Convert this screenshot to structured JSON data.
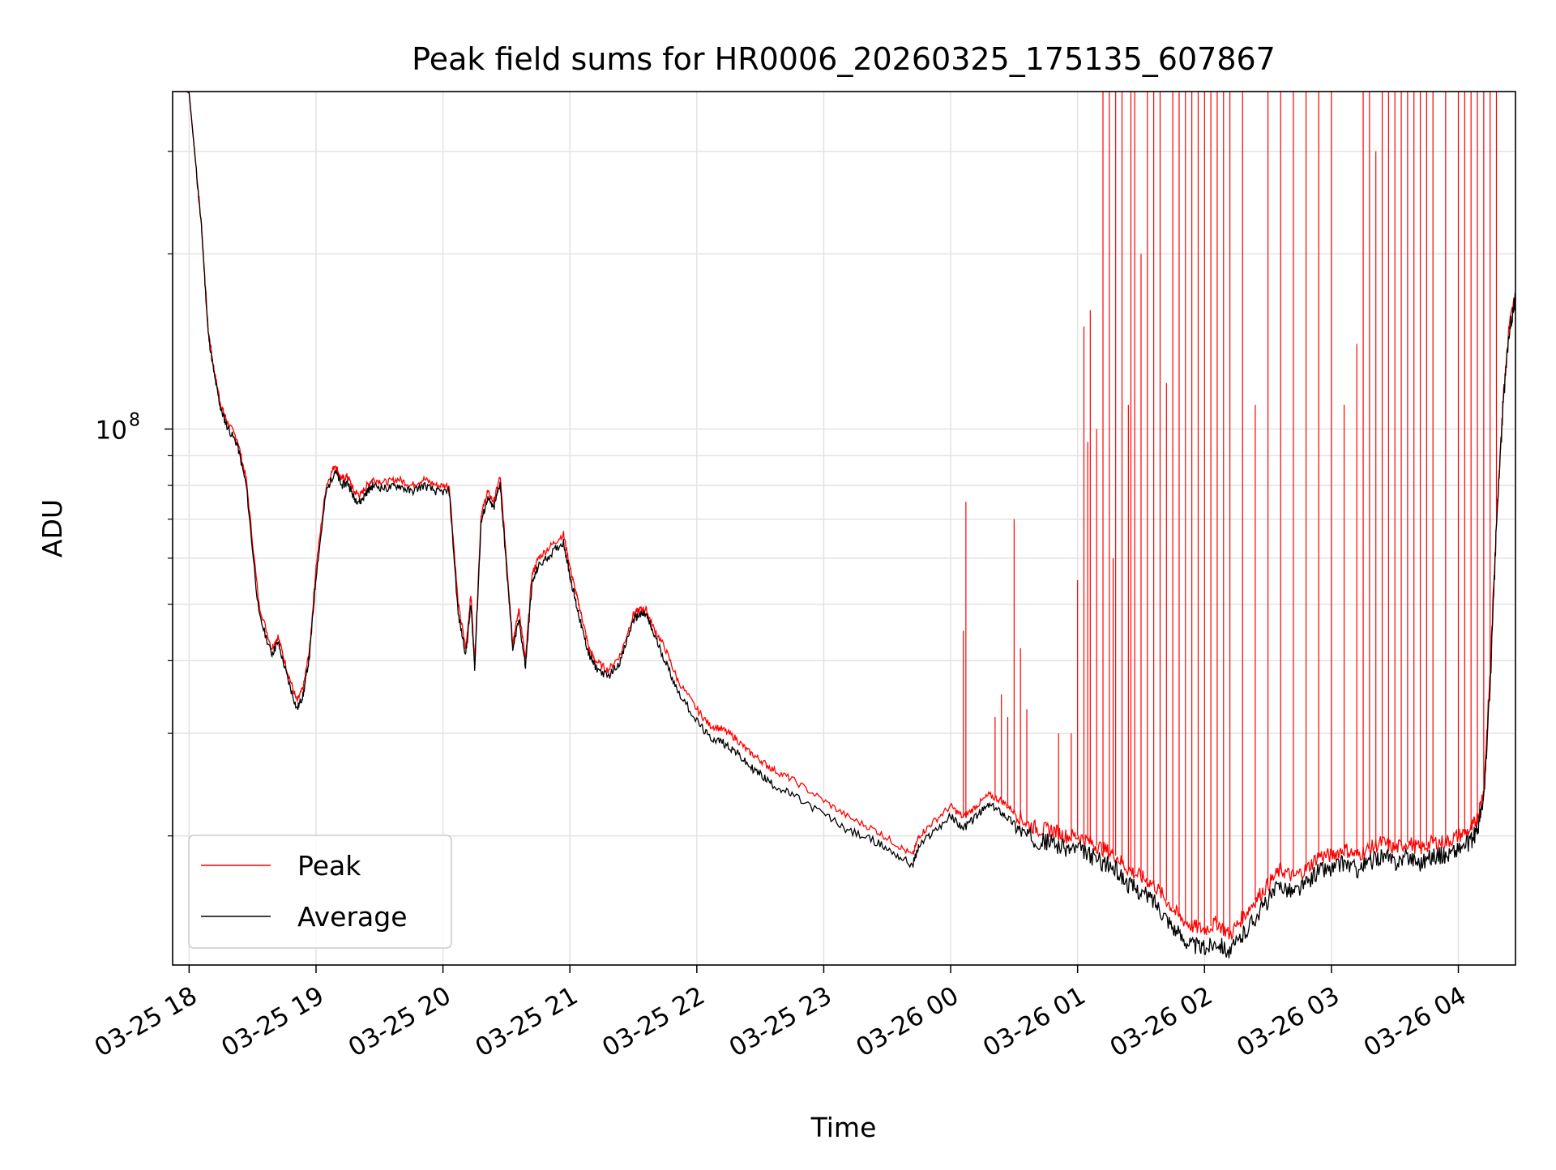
{
  "chart_data": {
    "type": "line",
    "title": "Peak field sums for HR0006_20260325_175135_607867",
    "xlabel": "Time",
    "ylabel": "ADU",
    "y_scale": "log",
    "x_unit": "hours since 03-25 00:00",
    "xlim": [
      17.87,
      28.45
    ],
    "ylim": [
      12000000,
      380000000
    ],
    "x_ticks": [
      {
        "value": 18,
        "label": "03-25 18"
      },
      {
        "value": 19,
        "label": "03-25 19"
      },
      {
        "value": 20,
        "label": "03-25 20"
      },
      {
        "value": 21,
        "label": "03-25 21"
      },
      {
        "value": 22,
        "label": "03-25 22"
      },
      {
        "value": 23,
        "label": "03-25 23"
      },
      {
        "value": 24,
        "label": "03-26 00"
      },
      {
        "value": 25,
        "label": "03-26 01"
      },
      {
        "value": 26,
        "label": "03-26 02"
      },
      {
        "value": 27,
        "label": "03-26 03"
      },
      {
        "value": 28,
        "label": "03-26 04"
      }
    ],
    "y_major_ticks": [
      {
        "value": 100000000,
        "base": "10",
        "exponent": "8"
      }
    ],
    "y_minor_ticks": [
      20000000,
      30000000,
      40000000,
      50000000,
      60000000,
      70000000,
      80000000,
      90000000,
      200000000,
      300000000
    ],
    "grid": true,
    "legend_position": "lower-left",
    "series": [
      {
        "name": "Peak",
        "color": "#ff0000",
        "x": [
          17.87,
          17.98,
          18.0,
          18.05,
          18.1,
          18.15,
          18.2,
          18.25,
          18.3,
          18.38,
          18.45,
          18.55,
          18.65,
          18.7,
          18.78,
          18.85,
          18.9,
          18.95,
          19.0,
          19.08,
          19.15,
          19.2,
          19.25,
          19.3,
          19.35,
          19.4,
          19.45,
          19.55,
          19.65,
          19.75,
          19.85,
          19.95,
          20.05,
          20.12,
          20.18,
          20.22,
          20.25,
          20.3,
          20.35,
          20.4,
          20.45,
          20.5,
          20.55,
          20.6,
          20.65,
          20.7,
          20.75,
          20.85,
          20.95,
          21.0,
          21.05,
          21.1,
          21.15,
          21.2,
          21.3,
          21.4,
          21.5,
          21.55,
          21.6,
          21.65,
          21.75,
          21.85,
          22.0,
          22.1,
          22.2,
          22.3,
          22.4,
          22.5,
          22.6,
          22.75,
          23.0,
          23.2,
          23.4,
          23.55,
          23.7,
          23.75,
          23.85,
          24.0,
          24.1,
          24.2,
          24.3,
          24.4,
          24.5,
          24.6,
          24.7,
          24.8,
          24.9,
          25.0,
          25.1,
          25.2,
          25.3,
          25.4,
          25.5,
          25.6,
          25.7,
          25.8,
          25.9,
          26.0,
          26.1,
          26.2,
          26.3,
          26.4,
          26.5,
          26.6,
          26.7,
          26.8,
          26.9,
          27.0,
          27.1,
          27.2,
          27.3,
          27.4,
          27.5,
          27.6,
          27.7,
          27.8,
          27.9,
          28.0,
          28.1,
          28.15,
          28.2,
          28.25,
          28.3,
          28.35,
          28.4,
          28.45
        ],
        "values": [
          380000000,
          380000000,
          378000000,
          290000000,
          220000000,
          148000000,
          125000000,
          110000000,
          103000000,
          96000000,
          82000000,
          50000000,
          42000000,
          44000000,
          38000000,
          34000000,
          36000000,
          42000000,
          58000000,
          80000000,
          87000000,
          82000000,
          83000000,
          78000000,
          77000000,
          80000000,
          82000000,
          81000000,
          82000000,
          80000000,
          82000000,
          80000000,
          80000000,
          50000000,
          42000000,
          52000000,
          40000000,
          71000000,
          78000000,
          75000000,
          83000000,
          60000000,
          43000000,
          49000000,
          40000000,
          56000000,
          60000000,
          63000000,
          66000000,
          58000000,
          52000000,
          47000000,
          42000000,
          40000000,
          38500000,
          41000000,
          48000000,
          49000000,
          49000000,
          46000000,
          42000000,
          37000000,
          33000000,
          31000000,
          30500000,
          29500000,
          28000000,
          27000000,
          26000000,
          25000000,
          23000000,
          21500000,
          20500000,
          19500000,
          18500000,
          20000000,
          21000000,
          22500000,
          21500000,
          22500000,
          23500000,
          23000000,
          22000000,
          21000000,
          20500000,
          20500000,
          20000000,
          20000000,
          19500000,
          19000000,
          18500000,
          17500000,
          17000000,
          16500000,
          15500000,
          14500000,
          14000000,
          13800000,
          14200000,
          13500000,
          14500000,
          15500000,
          16500000,
          17500000,
          17000000,
          17500000,
          18500000,
          18500000,
          19000000,
          18500000,
          19000000,
          19500000,
          19000000,
          19500000,
          19000000,
          19500000,
          19500000,
          20000000,
          20500000,
          21500000,
          24000000,
          38000000,
          70000000,
          110000000,
          150000000,
          170000000
        ]
      },
      {
        "name": "Average",
        "color": "#000000",
        "x": [
          17.87,
          17.98,
          18.0,
          18.05,
          18.1,
          18.15,
          18.2,
          18.25,
          18.3,
          18.38,
          18.45,
          18.55,
          18.65,
          18.7,
          18.78,
          18.85,
          18.9,
          18.95,
          19.0,
          19.08,
          19.15,
          19.2,
          19.25,
          19.3,
          19.35,
          19.4,
          19.45,
          19.55,
          19.65,
          19.75,
          19.85,
          19.95,
          20.05,
          20.12,
          20.18,
          20.22,
          20.25,
          20.3,
          20.35,
          20.4,
          20.45,
          20.5,
          20.55,
          20.6,
          20.65,
          20.7,
          20.75,
          20.85,
          20.95,
          21.0,
          21.05,
          21.1,
          21.15,
          21.2,
          21.3,
          21.4,
          21.5,
          21.55,
          21.6,
          21.65,
          21.75,
          21.85,
          22.0,
          22.1,
          22.2,
          22.3,
          22.4,
          22.5,
          22.6,
          22.75,
          23.0,
          23.2,
          23.4,
          23.55,
          23.7,
          23.75,
          23.85,
          24.0,
          24.1,
          24.2,
          24.3,
          24.4,
          24.5,
          24.6,
          24.7,
          24.8,
          24.9,
          25.0,
          25.1,
          25.2,
          25.3,
          25.4,
          25.5,
          25.6,
          25.7,
          25.8,
          25.9,
          26.0,
          26.1,
          26.2,
          26.3,
          26.4,
          26.5,
          26.6,
          26.7,
          26.8,
          26.9,
          27.0,
          27.1,
          27.2,
          27.3,
          27.4,
          27.5,
          27.6,
          27.7,
          27.8,
          27.9,
          28.0,
          28.1,
          28.15,
          28.2,
          28.25,
          28.3,
          28.35,
          28.4,
          28.45
        ],
        "values": [
          380000000,
          380000000,
          378000000,
          288000000,
          218000000,
          146000000,
          123000000,
          108000000,
          101000000,
          94000000,
          80000000,
          48000000,
          41000000,
          43000000,
          37000000,
          33000000,
          35000000,
          41000000,
          56000000,
          78000000,
          85000000,
          80000000,
          81000000,
          76000000,
          75000000,
          78000000,
          80000000,
          79000000,
          80000000,
          78000000,
          80000000,
          78000000,
          78000000,
          48000000,
          41000000,
          50000000,
          39000000,
          69000000,
          76000000,
          73000000,
          81000000,
          58000000,
          42000000,
          47000000,
          39000000,
          54000000,
          58000000,
          61000000,
          64000000,
          56000000,
          50000000,
          45000000,
          41000000,
          39000000,
          37500000,
          40000000,
          47000000,
          48000000,
          48000000,
          45000000,
          40000000,
          35500000,
          31500000,
          29500000,
          29000000,
          28000000,
          26500000,
          25500000,
          24500000,
          23500000,
          21800000,
          20400000,
          19600000,
          18700000,
          17800000,
          19200000,
          20200000,
          21600000,
          20600000,
          21600000,
          22600000,
          22000000,
          21000000,
          20000000,
          19600000,
          19500000,
          19000000,
          19000000,
          18500000,
          18000000,
          17500000,
          16500000,
          16000000,
          15500000,
          14500000,
          13500000,
          13000000,
          12800000,
          13200000,
          12600000,
          13500000,
          14500000,
          15500000,
          16500000,
          16000000,
          16500000,
          17500000,
          17500000,
          18000000,
          17500000,
          18000000,
          18500000,
          18000000,
          18500000,
          18000000,
          18500000,
          18500000,
          19000000,
          19500000,
          20500000,
          23000000,
          36000000,
          68000000,
          108000000,
          148000000,
          168000000
        ]
      }
    ],
    "spikes": {
      "series": "Peak",
      "x": [
        24.1,
        24.12,
        24.35,
        24.4,
        24.45,
        24.5,
        24.55,
        24.6,
        24.85,
        24.95,
        25.0,
        25.05,
        25.08,
        25.1,
        25.15,
        25.2,
        25.25,
        25.28,
        25.3,
        25.35,
        25.4,
        25.42,
        25.45,
        25.5,
        25.55,
        25.6,
        25.65,
        25.7,
        25.75,
        25.8,
        25.85,
        25.9,
        25.95,
        26.0,
        26.05,
        26.1,
        26.15,
        26.2,
        26.3,
        26.4,
        26.5,
        26.6,
        26.7,
        26.8,
        26.9,
        27.0,
        27.1,
        27.2,
        27.25,
        27.3,
        27.35,
        27.4,
        27.45,
        27.5,
        27.55,
        27.6,
        27.65,
        27.7,
        27.75,
        27.8,
        27.9,
        28.0,
        28.05,
        28.1,
        28.15,
        28.2,
        28.25,
        28.3
      ],
      "values": [
        45000000,
        75000000,
        32000000,
        35000000,
        32000000,
        70000000,
        42000000,
        33000000,
        30000000,
        30000000,
        55000000,
        150000000,
        95000000,
        160000000,
        100000000,
        380000000,
        380000000,
        60000000,
        380000000,
        380000000,
        110000000,
        380000000,
        380000000,
        200000000,
        380000000,
        380000000,
        380000000,
        120000000,
        380000000,
        380000000,
        380000000,
        380000000,
        380000000,
        380000000,
        380000000,
        380000000,
        380000000,
        380000000,
        380000000,
        110000000,
        380000000,
        380000000,
        380000000,
        380000000,
        380000000,
        380000000,
        110000000,
        140000000,
        380000000,
        380000000,
        300000000,
        380000000,
        380000000,
        380000000,
        380000000,
        380000000,
        380000000,
        380000000,
        380000000,
        380000000,
        380000000,
        380000000,
        380000000,
        380000000,
        380000000,
        380000000,
        380000000,
        380000000
      ]
    }
  }
}
